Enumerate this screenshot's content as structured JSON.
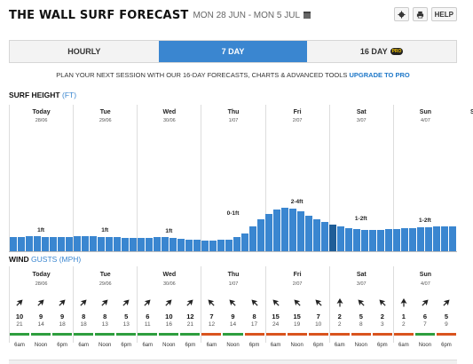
{
  "header": {
    "title": "THE WALL SURF FORECAST",
    "date_range": "MON 28 JUN - MON 5 JUL",
    "help_label": "HELP"
  },
  "tabs": [
    {
      "label": "HOURLY",
      "active": false
    },
    {
      "label": "7 DAY",
      "active": true
    },
    {
      "label": "16 DAY",
      "active": false,
      "badge": "PRO"
    }
  ],
  "promo": {
    "text": "PLAN YOUR NEXT SESSION WITH OUR 16-DAY FORECASTS, CHARTS & ADVANCED TOOLS",
    "link": "UPGRADE TO PRO"
  },
  "surf": {
    "label": "SURF HEIGHT",
    "unit": "(FT)",
    "edge_day_initial": "S",
    "days": [
      {
        "name": "Today",
        "date": "28/06",
        "height": "1ft"
      },
      {
        "name": "Tue",
        "date": "29/06",
        "height": "1ft"
      },
      {
        "name": "Wed",
        "date": "30/06",
        "height": "1ft"
      },
      {
        "name": "Thu",
        "date": "1/07",
        "height": "0-1ft"
      },
      {
        "name": "Fri",
        "date": "2/07",
        "height": "2-4ft"
      },
      {
        "name": "Sat",
        "date": "3/07",
        "height": "1-2ft"
      },
      {
        "name": "Sun",
        "date": "4/07",
        "height": "1-2ft"
      }
    ],
    "bar_levels": [
      0.22,
      0.22,
      0.23,
      0.23,
      0.22,
      0.21,
      0.21,
      0.22,
      0.23,
      0.24,
      0.23,
      0.22,
      0.21,
      0.21,
      0.2,
      0.19,
      0.19,
      0.2,
      0.21,
      0.22,
      0.2,
      0.18,
      0.16,
      0.15,
      0.14,
      0.14,
      0.15,
      0.16,
      0.22,
      0.3,
      0.45,
      0.6,
      0.72,
      0.82,
      0.87,
      0.85,
      0.78,
      0.68,
      0.6,
      0.55,
      0.5,
      0.45,
      0.42,
      0.4,
      0.38,
      0.38,
      0.38,
      0.39,
      0.4,
      0.41,
      0.42,
      0.43,
      0.44,
      0.45,
      0.45,
      0.46
    ],
    "dark_bar_indices": [
      40
    ]
  },
  "wind": {
    "label": "WIND",
    "unit_prefix": "GUSTS",
    "unit": "(MPH)",
    "slots": [
      {
        "speed": "10",
        "gust": "21",
        "dir": 45,
        "rating": "#2e9e3e"
      },
      {
        "speed": "9",
        "gust": "14",
        "dir": 45,
        "rating": "#2e9e3e"
      },
      {
        "speed": "9",
        "gust": "18",
        "dir": 45,
        "rating": "#2e9e3e"
      },
      {
        "speed": "8",
        "gust": "18",
        "dir": 45,
        "rating": "#2e9e3e"
      },
      {
        "speed": "8",
        "gust": "13",
        "dir": 45,
        "rating": "#2e9e3e"
      },
      {
        "speed": "5",
        "gust": "13",
        "dir": 45,
        "rating": "#2e9e3e"
      },
      {
        "speed": "6",
        "gust": "11",
        "dir": 45,
        "rating": "#2e9e3e"
      },
      {
        "speed": "10",
        "gust": "16",
        "dir": 45,
        "rating": "#2e9e3e"
      },
      {
        "speed": "12",
        "gust": "21",
        "dir": 45,
        "rating": "#2e9e3e"
      },
      {
        "speed": "7",
        "gust": "12",
        "dir": -45,
        "rating": "#d9541e"
      },
      {
        "speed": "9",
        "gust": "14",
        "dir": -45,
        "rating": "#2e9e3e"
      },
      {
        "speed": "8",
        "gust": "17",
        "dir": -45,
        "rating": "#d9541e"
      },
      {
        "speed": "15",
        "gust": "24",
        "dir": -45,
        "rating": "#d9541e"
      },
      {
        "speed": "15",
        "gust": "19",
        "dir": -45,
        "rating": "#d9541e"
      },
      {
        "speed": "7",
        "gust": "10",
        "dir": -45,
        "rating": "#d9541e"
      },
      {
        "speed": "2",
        "gust": "2",
        "dir": 0,
        "rating": "#d9541e"
      },
      {
        "speed": "5",
        "gust": "8",
        "dir": -45,
        "rating": "#d9541e"
      },
      {
        "speed": "2",
        "gust": "3",
        "dir": -45,
        "rating": "#d9541e"
      },
      {
        "speed": "1",
        "gust": "2",
        "dir": 0,
        "rating": "#d9541e"
      },
      {
        "speed": "6",
        "gust": "7",
        "dir": 45,
        "rating": "#2e9e3e"
      },
      {
        "speed": "5",
        "gust": "9",
        "dir": 45,
        "rating": "#d9541e"
      }
    ],
    "time_labels": [
      "6am",
      "Noon",
      "6pm"
    ]
  }
}
